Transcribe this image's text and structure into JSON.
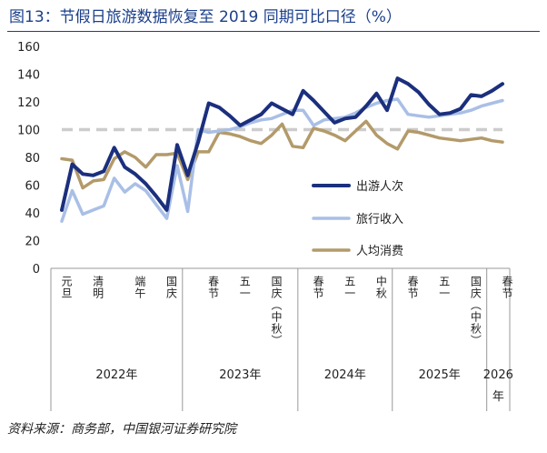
{
  "title": "图13：节假日旅游数据恢复至 2019 同期可比口径（%）",
  "source": "资料来源：商务部，中国银河证券研究院",
  "colors": {
    "title": "#1b3f8b",
    "series_trips": "#1b2f7d",
    "series_revenue": "#a9bfe6",
    "series_spend": "#b39a6a",
    "reference_line": "#cccccc",
    "axis": "#999999",
    "text": "#222222"
  },
  "chart_data": {
    "type": "line",
    "title": "节假日旅游数据恢复至 2019 同期可比口径（%）",
    "ylim": [
      0,
      160
    ],
    "yticks": [
      0,
      20,
      40,
      60,
      80,
      100,
      120,
      140,
      160
    ],
    "grid": false,
    "reference_line": 100,
    "legend_position": "center-right",
    "x": [
      0,
      1,
      2,
      3,
      4,
      5,
      6,
      7,
      8,
      9,
      10,
      11,
      12,
      13,
      14,
      15,
      16,
      17,
      18,
      19,
      20,
      21,
      22,
      23,
      24,
      25,
      26,
      27,
      28,
      29,
      30,
      31,
      32,
      33,
      34,
      35,
      36,
      37,
      38,
      39,
      40,
      41,
      42
    ],
    "x_tick_labels": [
      {
        "x": 0,
        "label": "元旦"
      },
      {
        "x": 3,
        "label": "清明"
      },
      {
        "x": 7,
        "label": "端午"
      },
      {
        "x": 10,
        "label": "国庆"
      },
      {
        "x": 14,
        "label": "春节"
      },
      {
        "x": 17,
        "label": "五一"
      },
      {
        "x": 20,
        "label": "国庆（中秋）"
      },
      {
        "x": 24,
        "label": "春节"
      },
      {
        "x": 27,
        "label": "五一"
      },
      {
        "x": 30,
        "label": "中秋"
      },
      {
        "x": 33,
        "label": "春节"
      },
      {
        "x": 36,
        "label": "五一"
      },
      {
        "x": 39,
        "label": "国庆（中秋）"
      },
      {
        "x": 42,
        "label": "春节"
      }
    ],
    "year_groups": [
      {
        "label": "2022年",
        "start": 0,
        "end": 11.5
      },
      {
        "label": "2023年",
        "start": 11.5,
        "end": 22.5
      },
      {
        "label": "2024年",
        "start": 22.5,
        "end": 31.5
      },
      {
        "label": "2025年",
        "start": 31.5,
        "end": 40.5
      },
      {
        "label": "2026年",
        "start": 40.5,
        "end": 43
      }
    ],
    "series": [
      {
        "name": "出游人次",
        "values": [
          42,
          75,
          68,
          67,
          70,
          87,
          73,
          68,
          61,
          52,
          42,
          89,
          67,
          91,
          119,
          116,
          110,
          103,
          107,
          111,
          119,
          115,
          111,
          128,
          121,
          113,
          105,
          108,
          109,
          117,
          126,
          114,
          137,
          133,
          127,
          118,
          111,
          112,
          115,
          125,
          124,
          128,
          133
        ]
      },
      {
        "name": "旅行收入",
        "values": [
          34,
          56,
          39,
          42,
          45,
          65,
          55,
          61,
          56,
          46,
          36,
          74,
          41,
          100,
          98,
          99,
          100,
          102,
          105,
          107,
          108,
          111,
          114,
          114,
          103,
          107,
          108,
          109,
          112,
          116,
          119,
          121,
          122,
          111,
          110,
          109,
          110,
          111,
          112,
          114,
          117,
          119,
          121
        ]
      },
      {
        "name": "人均消费",
        "values": [
          79,
          78,
          58,
          63,
          64,
          79,
          84,
          80,
          73,
          82,
          82,
          83,
          64,
          84,
          84,
          98,
          97,
          95,
          92,
          90,
          96,
          104,
          88,
          87,
          101,
          99,
          96,
          92,
          99,
          106,
          96,
          90,
          86,
          99,
          98,
          96,
          94,
          93,
          92,
          93,
          94,
          92,
          91
        ]
      }
    ]
  }
}
